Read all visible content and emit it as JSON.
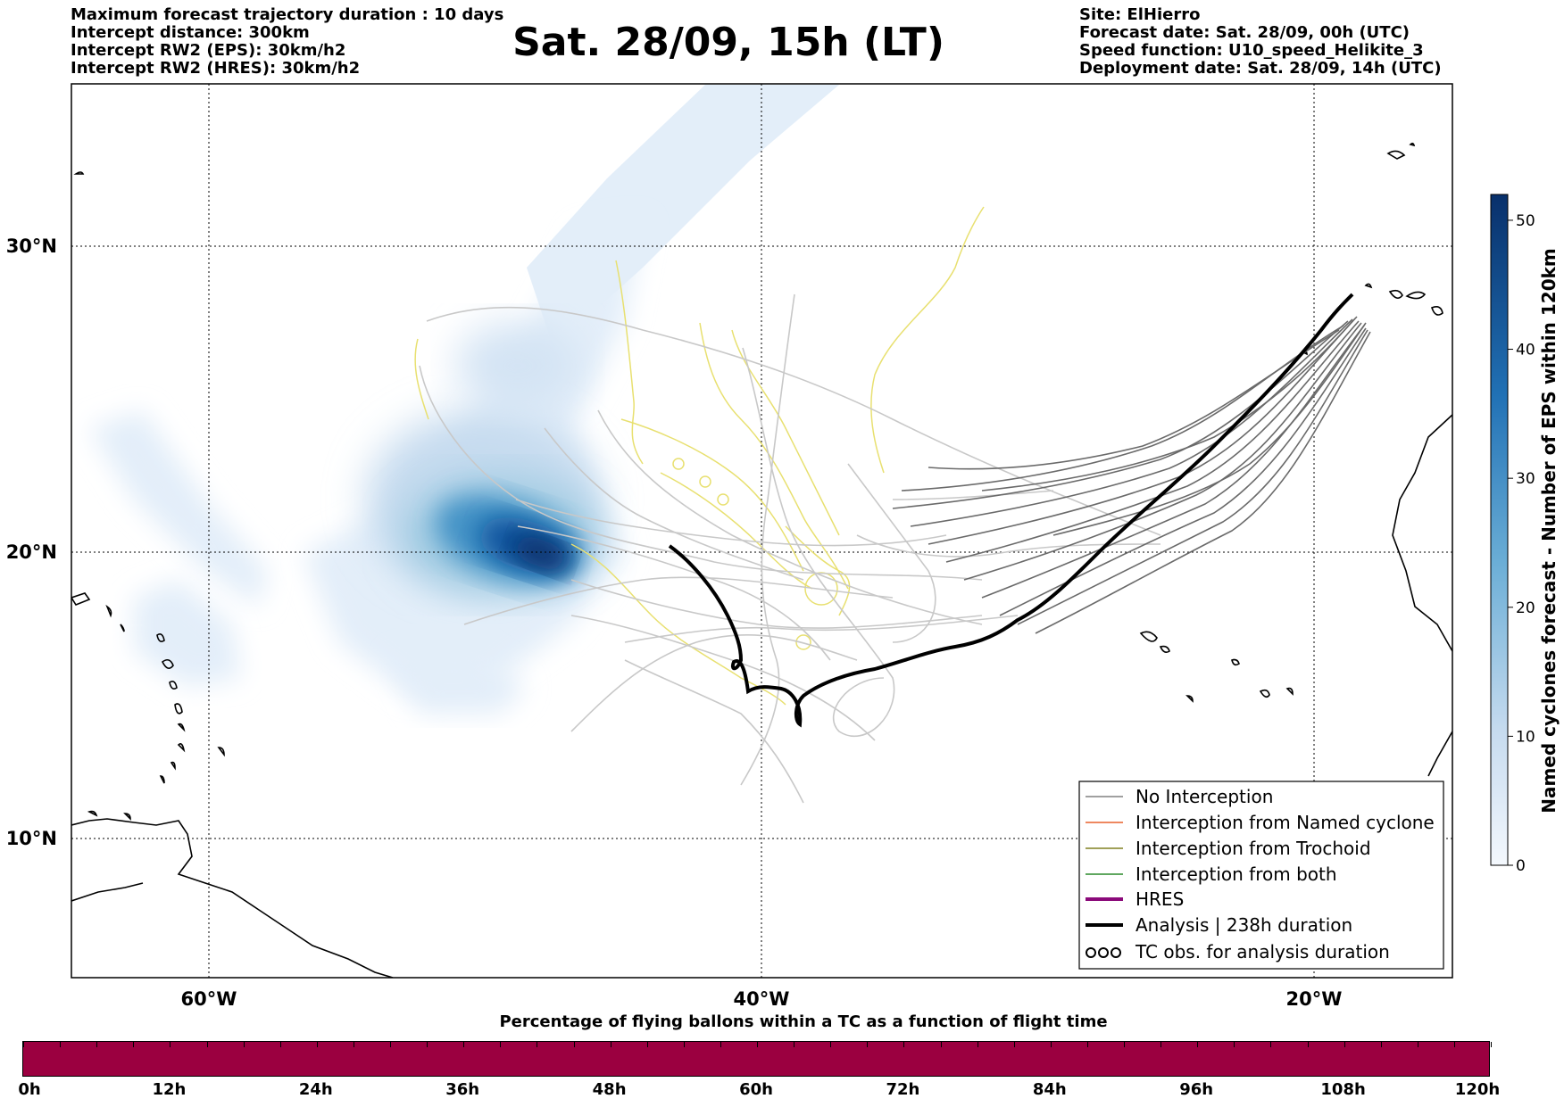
{
  "header": {
    "left_lines": [
      "Maximum forecast trajectory duration : 10 days",
      "Intercept distance: 300km",
      "Intercept RW2 (EPS):  30km/h2",
      "Intercept RW2 (HRES): 30km/h2"
    ],
    "title": "Sat. 28/09, 15h (LT)",
    "right_lines": [
      "Site: ElHierro",
      "Forecast date: Sat. 28/09, 00h (UTC)",
      "Speed function: U10_speed_Helikite_3",
      "Deployment date: Sat. 28/09, 14h (UTC)"
    ]
  },
  "map": {
    "latitude_labels": [
      "30°N",
      "20°N",
      "10°N"
    ],
    "longitude_labels": [
      "60°W",
      "40°W",
      "20°W"
    ],
    "legend": [
      {
        "label": "No Interception",
        "color": "#808080",
        "style": "thin-line"
      },
      {
        "label": "Interception from Named cyclone",
        "color": "#e8602c",
        "style": "thin-line"
      },
      {
        "label": "Interception from Trochoid",
        "color": "#808020",
        "style": "thin-line"
      },
      {
        "label": "Interception from both",
        "color": "#2a8a2a",
        "style": "thin-line"
      },
      {
        "label": "HRES",
        "color": "#8b0a7a",
        "style": "thick-line"
      },
      {
        "label": "Analysis | 238h duration",
        "color": "#000000",
        "style": "thick-line"
      },
      {
        "label": "TC obs. for analysis duration",
        "color": "#000000",
        "style": "loops"
      }
    ],
    "colors": {
      "trajectory_gray": "#606060",
      "trajectory_lightgray": "#c8c8c8",
      "tc_track_yellow": "#e8e070",
      "analysis": "#000000",
      "density_dark": "#08306b",
      "density_light": "#deebf7"
    }
  },
  "colorbar": {
    "title": "Named cyclones forecast - Number of EPS within 120km",
    "ticks": [
      "0",
      "10",
      "20",
      "30",
      "40",
      "50"
    ],
    "range": [
      0,
      52
    ]
  },
  "time_bar": {
    "title": "Percentage of flying ballons within a TC as a function of flight time",
    "ticks": [
      "0h",
      "12h",
      "24h",
      "36h",
      "48h",
      "60h",
      "72h",
      "84h",
      "96h",
      "108h",
      "120h"
    ],
    "color": "#9b0040"
  }
}
